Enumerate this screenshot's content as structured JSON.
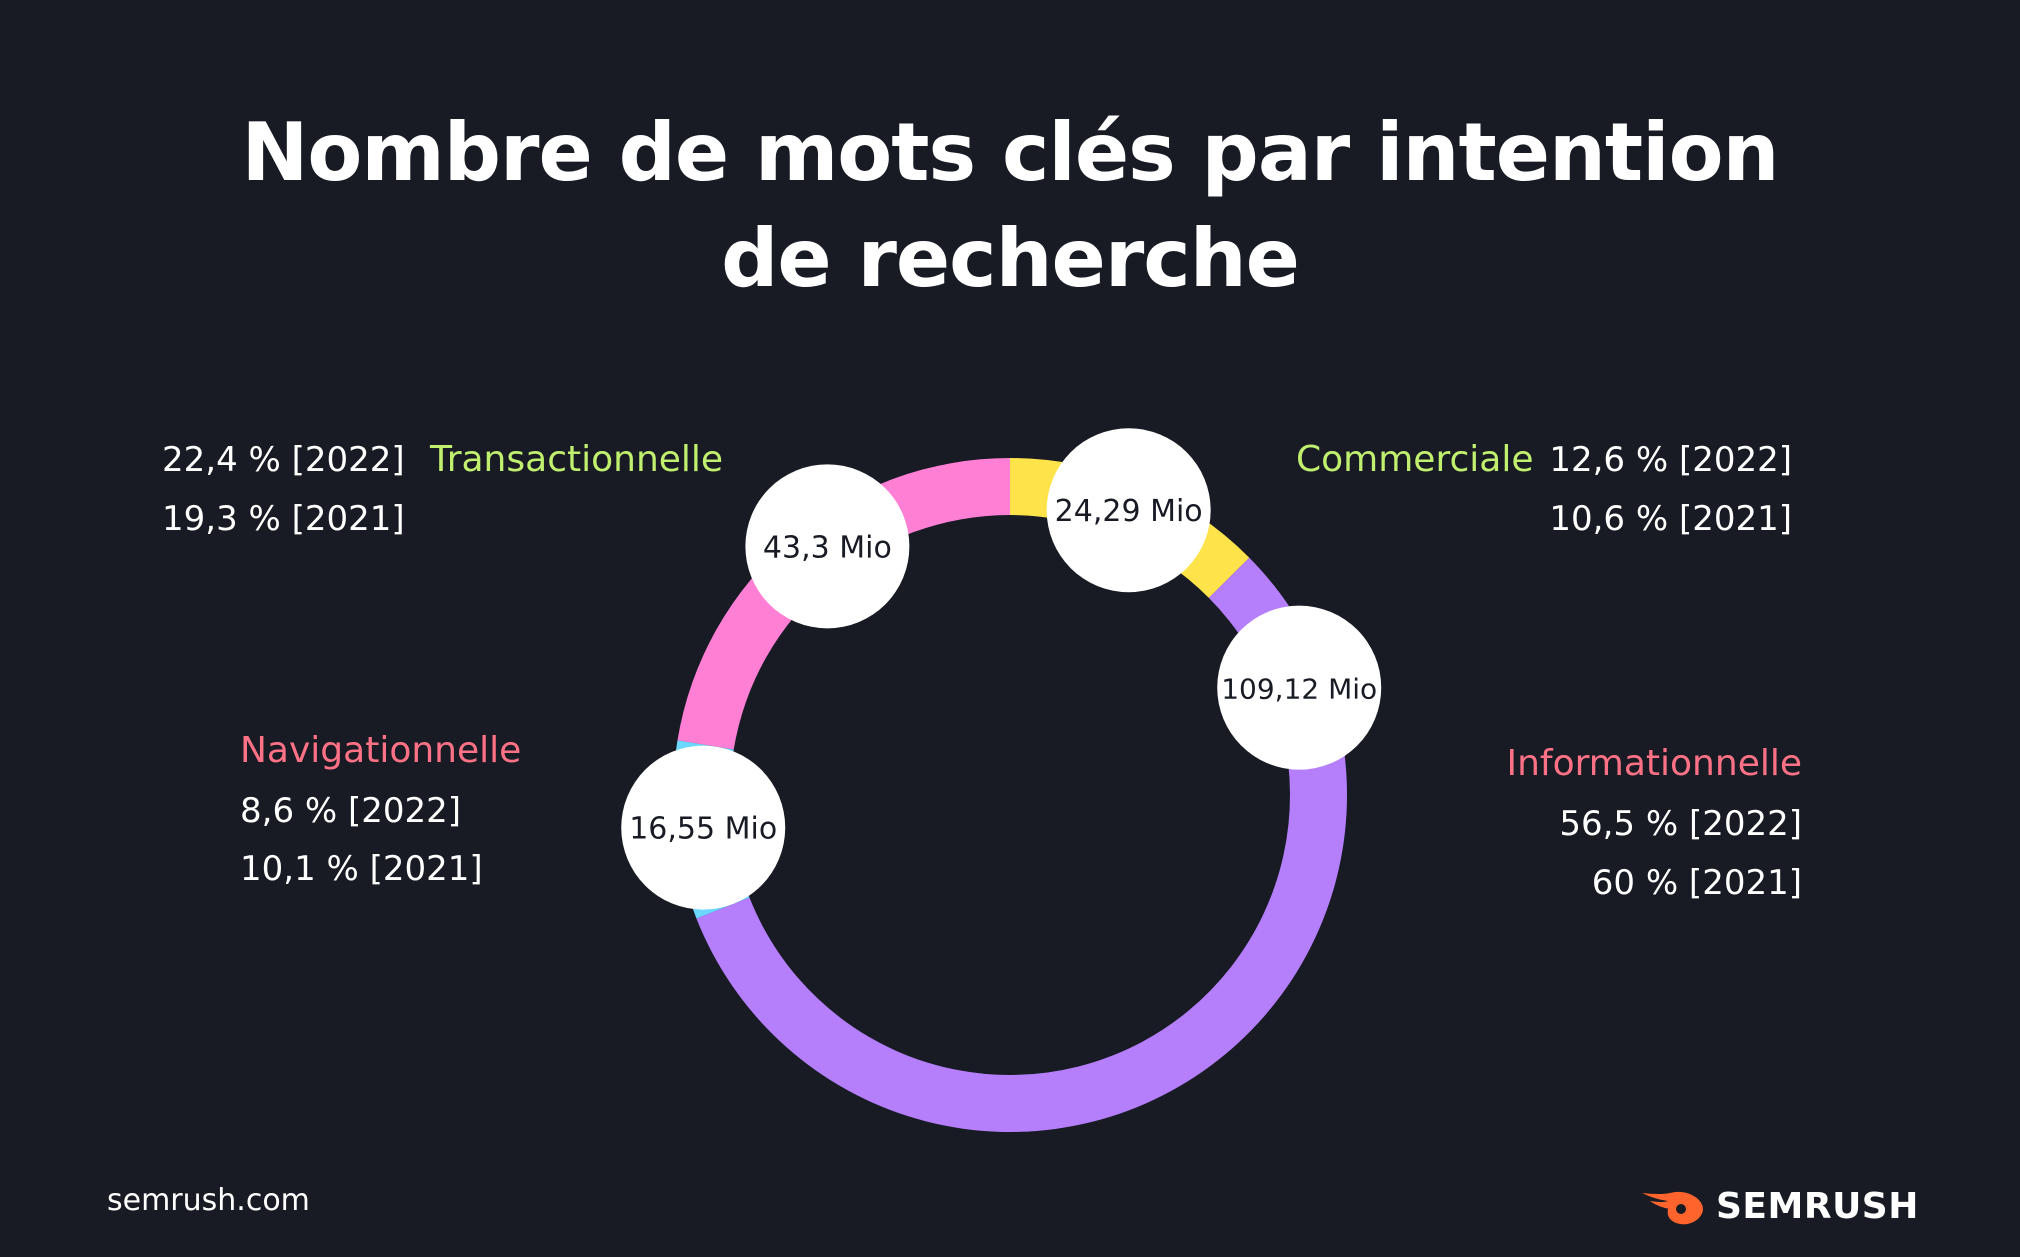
{
  "title_line1": "Nombre de mots clés par intention",
  "title_line2": "de recherche",
  "chart_data": {
    "type": "pie",
    "donut": true,
    "title": "Nombre de mots clés par intention de recherche",
    "unit": "Mio",
    "series": [
      {
        "name": "Commerciale",
        "value": 24.29,
        "value_label": "24,29 Mio",
        "share_2022": 12.6,
        "share_2021": 10.6,
        "line_2022": "12,6 % [2022]",
        "line_2021": "10,6 % [2021]",
        "color": "#ffe34a",
        "label_color": "#c1ef6e"
      },
      {
        "name": "Informationnelle",
        "value": 109.12,
        "value_label": "109,12 Mio",
        "share_2022": 56.5,
        "share_2021": 60,
        "line_2022": "56,5 % [2022]",
        "line_2021": "60 % [2021]",
        "color": "#b57ffc",
        "label_color": "#ff7286"
      },
      {
        "name": "Navigationnelle",
        "value": 16.55,
        "value_label": "16,55 Mio",
        "share_2022": 8.6,
        "share_2021": 10.1,
        "line_2022": "8,6 % [2022]",
        "line_2021": "10,1 % [2021]",
        "color": "#6cd7ff",
        "label_color": "#ff7286"
      },
      {
        "name": "Transactionnelle",
        "value": 43.3,
        "value_label": "43,3 Mio",
        "share_2022": 22.4,
        "share_2021": 19.3,
        "line_2022": "22,4 % [2022]",
        "line_2021": "19,3 % [2021]",
        "color": "#ff7fd5",
        "label_color": "#c1ef6e"
      }
    ]
  },
  "footer": {
    "site": "semrush.com"
  },
  "logo": {
    "text": "SEMRUSH",
    "color": "#ff642d",
    "icon": "semrush-flame-icon"
  }
}
